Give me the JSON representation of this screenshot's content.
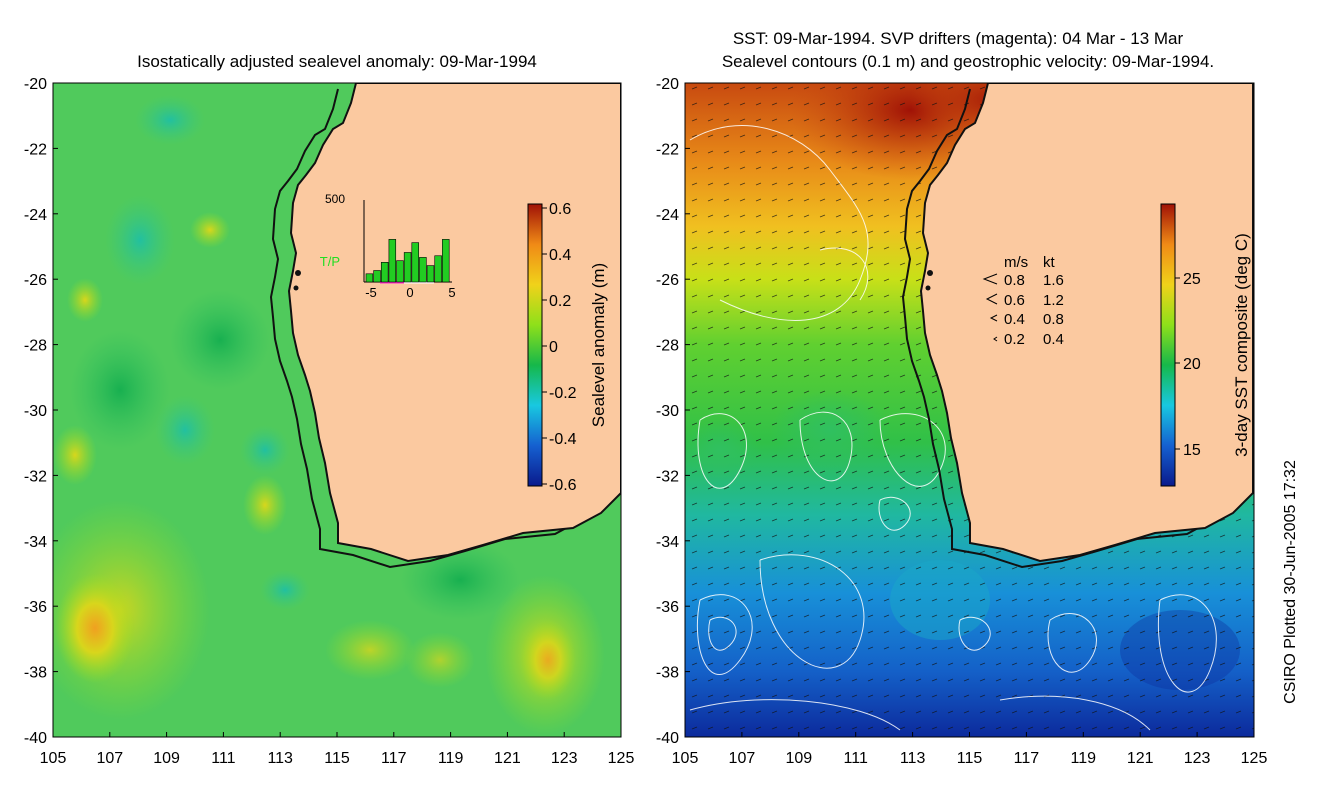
{
  "left_panel": {
    "title": "Isostatically adjusted sealevel anomaly: 09-Mar-1994",
    "y_ticks": [
      "-20",
      "-22",
      "-24",
      "-26",
      "-28",
      "-30",
      "-32",
      "-34",
      "-36",
      "-38",
      "-40"
    ],
    "x_ticks": [
      "105",
      "107",
      "109",
      "111",
      "113",
      "115",
      "117",
      "119",
      "121",
      "123",
      "125"
    ],
    "colorbar_label": "Sealevel anomaly (m)",
    "colorbar_ticks": [
      "0.6",
      "0.4",
      "0.2",
      "0",
      "-0.2",
      "-0.4",
      "-0.6"
    ],
    "colorbar_stops": [
      "#0a1a8c",
      "#1560d0",
      "#18c8e0",
      "#16b84a",
      "#8ee01a",
      "#f0d21a",
      "#f08a16",
      "#a01206"
    ],
    "inset": {
      "y_max_label": "500",
      "series_label": "T/P",
      "x_ticks": [
        "-5",
        "0",
        "5"
      ],
      "bar_values": [
        50,
        70,
        120,
        260,
        130,
        180,
        240,
        150,
        100,
        160,
        260
      ],
      "bar_color": "#22cc22"
    }
  },
  "right_panel": {
    "title_line1": "SST: 09-Mar-1994. SVP drifters (magenta): 04 Mar - 13 Mar",
    "title_line2": "Sealevel contours (0.1 m) and geostrophic velocity: 09-Mar-1994.",
    "y_ticks": [
      "-20",
      "-22",
      "-24",
      "-26",
      "-28",
      "-30",
      "-32",
      "-34",
      "-36",
      "-38",
      "-40"
    ],
    "x_ticks": [
      "105",
      "107",
      "109",
      "111",
      "113",
      "115",
      "117",
      "119",
      "121",
      "123",
      "125"
    ],
    "colorbar_label": "3-day SST composite (deg C)",
    "colorbar_ticks": [
      "25",
      "20",
      "15"
    ],
    "colorbar_stops": [
      "#0a1a8c",
      "#1560d0",
      "#18c8e0",
      "#16b84a",
      "#8ee01a",
      "#f0d21a",
      "#f08a16",
      "#a01206"
    ],
    "velocity_legend": {
      "headers": [
        "m/s",
        "kt"
      ],
      "rows": [
        {
          "ms": "0.8",
          "kt": "1.6"
        },
        {
          "ms": "0.6",
          "kt": "1.2"
        },
        {
          "ms": "0.4",
          "kt": "0.8"
        },
        {
          "ms": "0.2",
          "kt": "0.4"
        }
      ]
    }
  },
  "side_note": "CSIRO Plotted 30-Jun-2005 17:32",
  "colors": {
    "land": "#fbc9a0",
    "coast": "#111111",
    "contour": "#ffffff"
  }
}
